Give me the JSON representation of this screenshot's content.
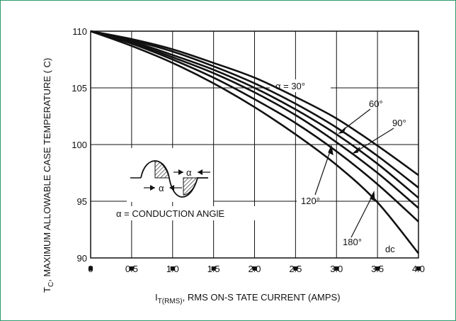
{
  "chart_data": {
    "type": "line",
    "xlabel": "I",
    "xlabel_sub": "T(RMS)",
    "xlabel_rest": ", RMS ON-S TATE CURRENT (AMPS)",
    "ylabel": "T",
    "ylabel_sub": "C",
    "ylabel_rest": ", MAXIMUM ALLOWABLE CASE TEMPERATURE  ( C)",
    "xlim": [
      0,
      4.0
    ],
    "ylim": [
      90,
      110
    ],
    "x_ticks": [
      "0",
      "0.5",
      "1.0",
      "1.5",
      "2.0",
      "2.5",
      "3.0",
      "3.5",
      "4.0"
    ],
    "y_ticks": [
      "90",
      "95",
      "100",
      "105",
      "110"
    ],
    "grid": true,
    "series": [
      {
        "name": "α = 30°",
        "x": [
          0,
          0.5,
          1.0,
          1.5,
          2.0,
          2.5,
          3.0,
          3.5,
          4.0
        ],
        "y": [
          110,
          109.3,
          108.4,
          107.2,
          105.9,
          104.2,
          102.3,
          99.9,
          97.3
        ]
      },
      {
        "name": "60°",
        "x": [
          0,
          0.5,
          1.0,
          1.5,
          2.0,
          2.5,
          3.0,
          3.5,
          4.0
        ],
        "y": [
          110,
          109.2,
          108.2,
          106.9,
          105.4,
          103.6,
          101.5,
          99.0,
          96.2
        ]
      },
      {
        "name": "90°",
        "x": [
          0,
          0.5,
          1.0,
          1.5,
          2.0,
          2.5,
          3.0,
          3.5,
          4.0
        ],
        "y": [
          110,
          109.1,
          107.9,
          106.6,
          105.0,
          103.1,
          100.9,
          98.3,
          95.3
        ]
      },
      {
        "name": "120°",
        "x": [
          0,
          0.5,
          1.0,
          1.5,
          2.0,
          2.5,
          3.0,
          3.5,
          4.0
        ],
        "y": [
          110,
          109.0,
          107.7,
          106.3,
          104.6,
          102.6,
          100.2,
          97.5,
          94.4
        ]
      },
      {
        "name": "180°",
        "x": [
          0,
          0.5,
          1.0,
          1.5,
          2.0,
          2.5,
          3.0,
          3.5,
          4.0
        ],
        "y": [
          110,
          108.9,
          107.5,
          105.9,
          104.0,
          101.9,
          99.4,
          96.5,
          93.2
        ]
      },
      {
        "name": "dc",
        "x": [
          0,
          0.5,
          1.0,
          1.5,
          2.0,
          2.5,
          3.0,
          3.5,
          4.0
        ],
        "y": [
          110,
          108.7,
          107.2,
          105.4,
          103.3,
          100.9,
          98.2,
          94.9,
          90.4
        ]
      }
    ],
    "annotations": {
      "alpha_inset_label": "α",
      "conduction_angle": "α = CONDUCTION ANGlE"
    }
  }
}
